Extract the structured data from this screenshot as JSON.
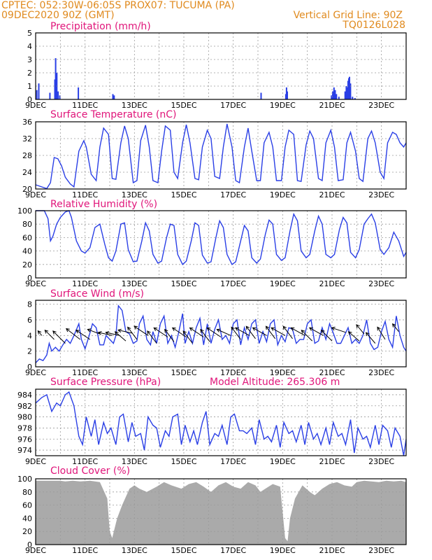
{
  "header": {
    "line1_left": "CPTEC:  052:30W-06:05S  PROX07: TUCUMA (PA)",
    "line2_left": "09DEC2020 90Z (GMT)",
    "line2_right": "Vertical Grid Line: 90Z",
    "line3_right": "TQ0126L028"
  },
  "colors": {
    "series": "#2a3fe6",
    "wind_arrow": "#000000",
    "cloud": "#aaaaaa",
    "header": "#e08a1e",
    "title": "#e0157a"
  },
  "x_tick_labels": [
    "9DEC",
    "11DEC",
    "13DEC",
    "15DEC",
    "17DEC",
    "19DEC",
    "21DEC",
    "23DEC"
  ],
  "chart_data": [
    {
      "type": "bar",
      "title": "Precipitation (mm/h)",
      "x_range_days": [
        0,
        15
      ],
      "ylim": [
        0,
        5
      ],
      "yticks": [
        0,
        1,
        2,
        3,
        4,
        5
      ],
      "bars": [
        [
          0.02,
          0.7
        ],
        [
          0.1,
          1.2
        ],
        [
          0.55,
          0.5
        ],
        [
          0.75,
          1.5
        ],
        [
          0.78,
          3.1
        ],
        [
          0.83,
          2.0
        ],
        [
          0.88,
          0.6
        ],
        [
          0.95,
          0.3
        ],
        [
          1.7,
          0.9
        ],
        [
          3.1,
          0.4
        ],
        [
          3.15,
          0.3
        ],
        [
          9.1,
          0.5
        ],
        [
          10.1,
          0.4
        ],
        [
          10.13,
          0.9
        ],
        [
          10.16,
          0.6
        ],
        [
          11.95,
          0.3
        ],
        [
          12.0,
          0.6
        ],
        [
          12.05,
          0.9
        ],
        [
          12.1,
          0.7
        ],
        [
          12.15,
          0.4
        ],
        [
          12.25,
          0.2
        ],
        [
          12.5,
          0.6
        ],
        [
          12.55,
          1.0
        ],
        [
          12.58,
          0.9
        ],
        [
          12.62,
          1.4
        ],
        [
          12.65,
          1.6
        ],
        [
          12.68,
          1.7
        ],
        [
          12.72,
          1.2
        ],
        [
          12.8,
          0.2
        ],
        [
          12.9,
          0.1
        ]
      ]
    },
    {
      "type": "line",
      "title": "Surface Temperature (nC)",
      "ylim": [
        20,
        36
      ],
      "yticks": [
        20,
        24,
        28,
        32,
        36
      ],
      "x": [
        0,
        0.25,
        0.45,
        0.6,
        0.75,
        0.9,
        1.05,
        1.2,
        1.4,
        1.55,
        1.75,
        1.95,
        2.05,
        2.25,
        2.45,
        2.6,
        2.75,
        2.95,
        3.1,
        3.25,
        3.45,
        3.6,
        3.75,
        3.95,
        4.1,
        4.25,
        4.45,
        4.6,
        4.75,
        4.95,
        5.1,
        5.25,
        5.45,
        5.6,
        5.75,
        5.95,
        6.1,
        6.25,
        6.45,
        6.6,
        6.75,
        6.95,
        7.1,
        7.25,
        7.45,
        7.6,
        7.75,
        7.95,
        8.1,
        8.25,
        8.45,
        8.6,
        8.75,
        8.95,
        9.1,
        9.25,
        9.45,
        9.6,
        9.75,
        9.95,
        10.1,
        10.25,
        10.45,
        10.6,
        10.75,
        10.95,
        11.1,
        11.25,
        11.45,
        11.6,
        11.75,
        11.95,
        12.1,
        12.25,
        12.45,
        12.6,
        12.75,
        12.95,
        13.1,
        13.25,
        13.45,
        13.6,
        13.75,
        13.95,
        14.1,
        14.25,
        14.45,
        14.6,
        14.75,
        14.9,
        15.0
      ],
      "y": [
        21,
        20.5,
        20.1,
        21.5,
        27.5,
        27.2,
        25.5,
        22.8,
        21.2,
        20.5,
        29,
        31.5,
        30,
        23.5,
        22,
        30,
        34.5,
        33,
        22.5,
        22.3,
        31,
        35,
        32,
        21.5,
        22,
        31.5,
        35.2,
        30,
        22,
        21.5,
        29,
        35,
        34,
        24,
        22.5,
        31,
        35.3,
        31,
        22.5,
        22.2,
        30,
        34,
        32,
        23,
        22.5,
        30,
        35.5,
        30,
        22,
        21.5,
        30,
        34.5,
        29,
        22,
        22,
        31,
        33.5,
        30,
        22,
        22,
        30,
        34,
        33,
        22,
        21.8,
        30.5,
        33.8,
        32,
        22.5,
        22,
        31,
        34,
        30,
        22,
        22.2,
        31,
        33.5,
        29,
        22.5,
        21.8,
        32,
        33.8,
        31,
        24,
        22.5,
        31,
        33.5,
        33,
        31,
        30,
        31
      ]
    },
    {
      "type": "line",
      "title": "Relative Humidity (%)",
      "ylim": [
        0,
        100
      ],
      "yticks": [
        0,
        20,
        40,
        60,
        80,
        100
      ],
      "x": [
        0,
        0.2,
        0.35,
        0.5,
        0.6,
        0.7,
        0.85,
        1.0,
        1.2,
        1.35,
        1.45,
        1.65,
        1.85,
        2.0,
        2.2,
        2.4,
        2.6,
        2.8,
        2.95,
        3.1,
        3.25,
        3.45,
        3.6,
        3.75,
        3.95,
        4.1,
        4.3,
        4.45,
        4.6,
        4.75,
        4.95,
        5.1,
        5.3,
        5.45,
        5.6,
        5.75,
        5.95,
        6.1,
        6.3,
        6.45,
        6.6,
        6.75,
        6.95,
        7.1,
        7.3,
        7.45,
        7.6,
        7.75,
        7.95,
        8.1,
        8.3,
        8.45,
        8.6,
        8.75,
        8.95,
        9.1,
        9.3,
        9.45,
        9.6,
        9.75,
        9.95,
        10.1,
        10.3,
        10.45,
        10.6,
        10.75,
        10.95,
        11.1,
        11.3,
        11.45,
        11.6,
        11.75,
        11.95,
        12.1,
        12.3,
        12.45,
        12.6,
        12.75,
        12.95,
        13.1,
        13.3,
        13.45,
        13.6,
        13.75,
        13.95,
        14.1,
        14.3,
        14.5,
        14.7,
        14.9,
        15.0
      ],
      "y": [
        100,
        100,
        100,
        88,
        55,
        62,
        80,
        90,
        98,
        100,
        90,
        55,
        40,
        37,
        45,
        75,
        80,
        50,
        30,
        25,
        40,
        80,
        82,
        42,
        24,
        25,
        55,
        82,
        70,
        35,
        22,
        25,
        60,
        80,
        78,
        35,
        20,
        25,
        55,
        82,
        78,
        34,
        22,
        24,
        60,
        85,
        75,
        35,
        20,
        24,
        55,
        78,
        70,
        30,
        22,
        28,
        65,
        86,
        80,
        35,
        26,
        30,
        70,
        95,
        85,
        40,
        30,
        35,
        70,
        92,
        80,
        35,
        30,
        35,
        72,
        90,
        82,
        38,
        30,
        42,
        80,
        88,
        95,
        82,
        42,
        35,
        45,
        68,
        55,
        32,
        38
      ]
    },
    {
      "type": "line",
      "title": "Surface Wind (m/s)",
      "ylim": [
        0,
        8.5
      ],
      "yticks": [
        0,
        2,
        4,
        6,
        8
      ],
      "x": [
        0,
        0.15,
        0.3,
        0.45,
        0.55,
        0.65,
        0.8,
        0.95,
        1.1,
        1.25,
        1.4,
        1.55,
        1.75,
        1.85,
        2.0,
        2.15,
        2.3,
        2.45,
        2.6,
        2.75,
        2.85,
        3.0,
        3.15,
        3.25,
        3.35,
        3.5,
        3.65,
        3.8,
        3.95,
        4.1,
        4.2,
        4.35,
        4.5,
        4.65,
        4.75,
        4.9,
        5.05,
        5.2,
        5.35,
        5.5,
        5.65,
        5.8,
        5.95,
        6.05,
        6.2,
        6.35,
        6.5,
        6.65,
        6.8,
        6.95,
        7.1,
        7.25,
        7.4,
        7.55,
        7.7,
        7.85,
        8.0,
        8.15,
        8.3,
        8.45,
        8.6,
        8.75,
        8.9,
        9.05,
        9.2,
        9.35,
        9.5,
        9.65,
        9.8,
        9.95,
        10.1,
        10.25,
        10.4,
        10.55,
        10.7,
        10.85,
        11.0,
        11.15,
        11.3,
        11.45,
        11.6,
        11.75,
        11.9,
        12.05,
        12.2,
        12.35,
        12.5,
        12.65,
        12.8,
        12.95,
        13.1,
        13.25,
        13.4,
        13.55,
        13.7,
        13.85,
        14.0,
        14.15,
        14.3,
        14.45,
        14.6,
        14.75,
        14.9,
        15.0
      ],
      "y": [
        0.5,
        1.0,
        0.8,
        1.5,
        3.0,
        2.0,
        2.5,
        2.0,
        2.8,
        3.5,
        3.0,
        4.0,
        5.5,
        3.5,
        2.3,
        3.8,
        5.5,
        5.0,
        2.8,
        2.8,
        4.0,
        3.5,
        3.0,
        4.0,
        7.8,
        7.2,
        4.5,
        4.2,
        3.0,
        3.3,
        5.5,
        6.5,
        3.5,
        2.8,
        4.5,
        3.0,
        5.5,
        6.5,
        3.0,
        4.0,
        2.5,
        4.5,
        6.8,
        3.0,
        4.5,
        3.0,
        5.0,
        6.2,
        2.8,
        5.5,
        3.0,
        4.8,
        6.0,
        3.5,
        4.0,
        3.0,
        5.5,
        6.0,
        2.8,
        5.0,
        3.5,
        5.5,
        6.0,
        3.0,
        4.5,
        3.2,
        5.5,
        6.0,
        2.8,
        4.0,
        3.2,
        5.0,
        4.8,
        3.0,
        3.5,
        3.5,
        5.5,
        6.0,
        3.0,
        3.3,
        5.0,
        3.5,
        5.5,
        4.3,
        3.0,
        3.0,
        4.0,
        5.0,
        3.0,
        3.5,
        3.0,
        4.0,
        6.0,
        3.0,
        2.2,
        2.5,
        4.5,
        5.8,
        3.5,
        2.5,
        6.5,
        4.0,
        2.5,
        2.0
      ],
      "vectors": [
        {
          "x": 0.25,
          "y": 4.0,
          "dx": -0.25,
          "dy": 0.3
        },
        {
          "x": 0.75,
          "y": 3.5,
          "dx": -0.6,
          "dy": 0.6
        },
        {
          "x": 1.2,
          "y": 3.0,
          "dx": -0.8,
          "dy": 0.8
        },
        {
          "x": 1.8,
          "y": 3.5,
          "dx": -0.9,
          "dy": 0.7
        },
        {
          "x": 2.2,
          "y": 3.5,
          "dx": -0.9,
          "dy": 0.6
        },
        {
          "x": 2.6,
          "y": 4.2,
          "dx": -0.8,
          "dy": 0.3
        },
        {
          "x": 3.1,
          "y": 4.0,
          "dx": -0.9,
          "dy": 0.2
        },
        {
          "x": 3.4,
          "y": 4.0,
          "dx": -0.9,
          "dy": 0.2
        },
        {
          "x": 3.65,
          "y": 3.3,
          "dx": -0.7,
          "dy": 0.6
        },
        {
          "x": 3.9,
          "y": 4.3,
          "dx": -0.9,
          "dy": 0.2
        },
        {
          "x": 4.1,
          "y": 3.5,
          "dx": -0.6,
          "dy": 0.8
        },
        {
          "x": 4.55,
          "y": 4.0,
          "dx": -0.9,
          "dy": 0.6
        },
        {
          "x": 4.9,
          "y": 3.0,
          "dx": -0.6,
          "dy": 0.8
        },
        {
          "x": 5.35,
          "y": 3.8,
          "dx": -0.9,
          "dy": 0.6
        },
        {
          "x": 5.6,
          "y": 3.2,
          "dx": -0.6,
          "dy": 0.8
        },
        {
          "x": 6.1,
          "y": 3.8,
          "dx": -0.9,
          "dy": 0.6
        },
        {
          "x": 6.35,
          "y": 3.0,
          "dx": -0.6,
          "dy": 0.8
        },
        {
          "x": 6.8,
          "y": 3.8,
          "dx": -0.9,
          "dy": 0.6
        },
        {
          "x": 7.05,
          "y": 3.2,
          "dx": -0.6,
          "dy": 0.8
        },
        {
          "x": 7.5,
          "y": 3.8,
          "dx": -0.9,
          "dy": 0.6
        },
        {
          "x": 7.9,
          "y": 4.0,
          "dx": -0.9,
          "dy": 0.4
        },
        {
          "x": 8.3,
          "y": 3.5,
          "dx": -0.6,
          "dy": 0.8
        },
        {
          "x": 8.65,
          "y": 4.0,
          "dx": -0.9,
          "dy": 0.5
        },
        {
          "x": 8.9,
          "y": 3.6,
          "dx": -0.6,
          "dy": 0.8
        },
        {
          "x": 9.35,
          "y": 4.0,
          "dx": -0.9,
          "dy": 0.5
        },
        {
          "x": 9.7,
          "y": 3.6,
          "dx": -0.6,
          "dy": 0.8
        },
        {
          "x": 10.1,
          "y": 4.0,
          "dx": -0.9,
          "dy": 0.5
        },
        {
          "x": 10.4,
          "y": 3.6,
          "dx": -0.6,
          "dy": 0.8
        },
        {
          "x": 10.9,
          "y": 4.0,
          "dx": -0.9,
          "dy": 0.5
        },
        {
          "x": 11.2,
          "y": 3.3,
          "dx": -0.7,
          "dy": 0.7
        },
        {
          "x": 11.65,
          "y": 4.0,
          "dx": -0.9,
          "dy": 0.5
        },
        {
          "x": 12.0,
          "y": 3.3,
          "dx": -0.7,
          "dy": 0.7
        },
        {
          "x": 12.55,
          "y": 4.4,
          "dx": -0.9,
          "dy": 0.3
        },
        {
          "x": 13.1,
          "y": 3.3,
          "dx": -0.7,
          "dy": 0.6
        },
        {
          "x": 13.3,
          "y": 4.2,
          "dx": -0.5,
          "dy": 0.6
        },
        {
          "x": 13.75,
          "y": 3.0,
          "dx": -0.6,
          "dy": 0.7
        },
        {
          "x": 14.15,
          "y": 3.5,
          "dx": -0.5,
          "dy": 0.8
        },
        {
          "x": 14.7,
          "y": 4.5,
          "dx": -0.4,
          "dy": 0.5
        }
      ]
    },
    {
      "type": "line",
      "title": "Surface Pressure (hPa)",
      "annotation": "Model Altitude: 265.306 m",
      "ylim": [
        973,
        985
      ],
      "yticks": [
        974,
        976,
        978,
        980,
        982,
        984
      ],
      "x": [
        0,
        0.25,
        0.45,
        0.65,
        0.85,
        1.0,
        1.2,
        1.35,
        1.55,
        1.75,
        1.9,
        2.05,
        2.25,
        2.4,
        2.55,
        2.75,
        2.9,
        3.05,
        3.25,
        3.4,
        3.55,
        3.75,
        3.9,
        4.05,
        4.25,
        4.4,
        4.55,
        4.75,
        4.9,
        5.05,
        5.25,
        5.4,
        5.55,
        5.75,
        5.9,
        6.05,
        6.25,
        6.4,
        6.55,
        6.75,
        6.9,
        7.05,
        7.25,
        7.4,
        7.55,
        7.75,
        7.9,
        8.05,
        8.25,
        8.4,
        8.55,
        8.75,
        8.9,
        9.05,
        9.25,
        9.4,
        9.55,
        9.75,
        9.9,
        10.05,
        10.25,
        10.4,
        10.55,
        10.75,
        10.9,
        11.05,
        11.25,
        11.4,
        11.55,
        11.75,
        11.9,
        12.05,
        12.25,
        12.4,
        12.55,
        12.75,
        12.9,
        13.05,
        13.25,
        13.4,
        13.55,
        13.75,
        13.9,
        14.05,
        14.25,
        14.4,
        14.55,
        14.75,
        14.9,
        15.0
      ],
      "y": [
        982.5,
        983.5,
        984.0,
        981.0,
        982.5,
        982.0,
        984.0,
        984.5,
        982.0,
        976.5,
        975.0,
        980.0,
        976.5,
        979.5,
        975.0,
        979.0,
        977.0,
        978.0,
        975.0,
        980.0,
        980.5,
        975.5,
        979.0,
        976.5,
        977.0,
        974.0,
        980.0,
        978.5,
        978.0,
        974.5,
        977.5,
        976.5,
        980.0,
        980.5,
        975.0,
        978.5,
        975.5,
        977.5,
        975.0,
        979.0,
        981.0,
        975.0,
        977.0,
        976.5,
        978.5,
        975.0,
        980.0,
        980.5,
        977.5,
        977.5,
        977.0,
        978.0,
        975.0,
        979.5,
        976.0,
        976.5,
        975.5,
        978.5,
        974.5,
        979.0,
        977.0,
        977.5,
        975.5,
        978.5,
        975.0,
        979.0,
        976.0,
        977.0,
        975.0,
        978.0,
        975.0,
        979.0,
        976.5,
        977.0,
        975.0,
        979.5,
        973.5,
        978.0,
        976.0,
        976.5,
        974.5,
        978.5,
        975.0,
        978.5,
        977.5,
        974.5,
        978.0,
        976.5,
        973.0,
        976.0
      ]
    },
    {
      "type": "area",
      "title": "Cloud Cover (%)",
      "ylim": [
        0,
        100
      ],
      "yticks": [
        0,
        20,
        40,
        60,
        80,
        100
      ],
      "x": [
        0,
        1.0,
        1.2,
        1.5,
        1.8,
        2.2,
        2.6,
        2.9,
        3.0,
        3.1,
        3.3,
        3.5,
        3.8,
        4.0,
        4.2,
        4.5,
        4.9,
        5.2,
        5.5,
        5.9,
        6.2,
        6.5,
        6.8,
        7.1,
        7.4,
        7.7,
        8.0,
        8.3,
        8.6,
        8.9,
        9.1,
        9.3,
        9.6,
        9.9,
        10.1,
        10.2,
        10.3,
        10.5,
        10.8,
        11.1,
        11.3,
        11.6,
        11.9,
        12.2,
        12.5,
        12.8,
        13.0,
        13.3,
        13.6,
        13.9,
        14.2,
        14.5,
        14.8,
        15.0
      ],
      "y": [
        97,
        97,
        96,
        97,
        96,
        97,
        95,
        70,
        20,
        10,
        40,
        60,
        85,
        90,
        85,
        80,
        88,
        95,
        90,
        85,
        92,
        95,
        88,
        80,
        90,
        95,
        88,
        85,
        95,
        90,
        80,
        85,
        92,
        88,
        10,
        5,
        40,
        70,
        90,
        80,
        75,
        85,
        92,
        95,
        90,
        88,
        95,
        97,
        96,
        95,
        97,
        96,
        97,
        95
      ]
    }
  ]
}
